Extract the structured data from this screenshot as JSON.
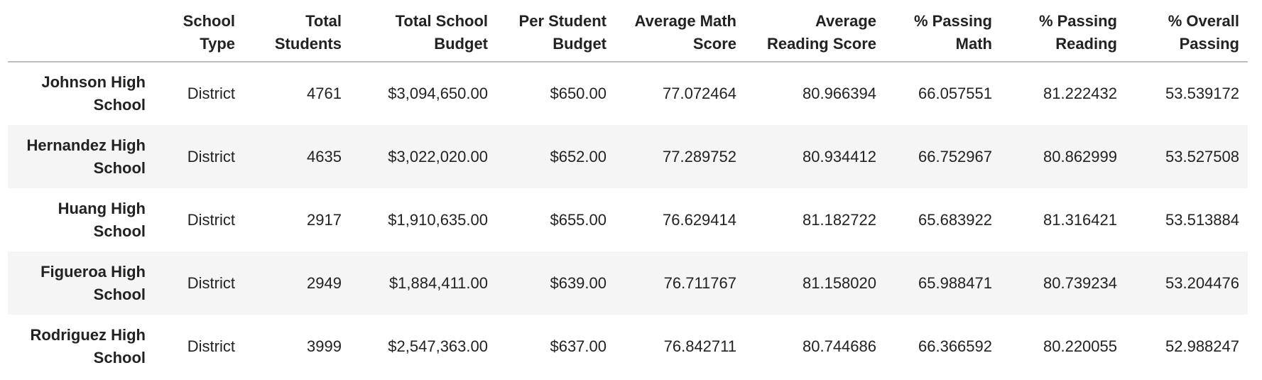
{
  "table": {
    "columns": [
      "",
      "School Type",
      "Total Students",
      "Total School Budget",
      "Per Student Budget",
      "Average Math Score",
      "Average Reading Score",
      "% Passing Math",
      "% Passing Reading",
      "% Overall Passing"
    ],
    "rows": [
      [
        "Johnson High School",
        "District",
        "4761",
        "$3,094,650.00",
        "$650.00",
        "77.072464",
        "80.966394",
        "66.057551",
        "81.222432",
        "53.539172"
      ],
      [
        "Hernandez High School",
        "District",
        "4635",
        "$3,022,020.00",
        "$652.00",
        "77.289752",
        "80.934412",
        "66.752967",
        "80.862999",
        "53.527508"
      ],
      [
        "Huang High School",
        "District",
        "2917",
        "$1,910,635.00",
        "$655.00",
        "76.629414",
        "81.182722",
        "65.683922",
        "81.316421",
        "53.513884"
      ],
      [
        "Figueroa High School",
        "District",
        "2949",
        "$1,884,411.00",
        "$639.00",
        "76.711767",
        "81.158020",
        "65.988471",
        "80.739234",
        "53.204476"
      ],
      [
        "Rodriguez High School",
        "District",
        "3999",
        "$2,547,363.00",
        "$637.00",
        "76.842711",
        "80.744686",
        "66.366592",
        "80.220055",
        "52.988247"
      ]
    ]
  }
}
